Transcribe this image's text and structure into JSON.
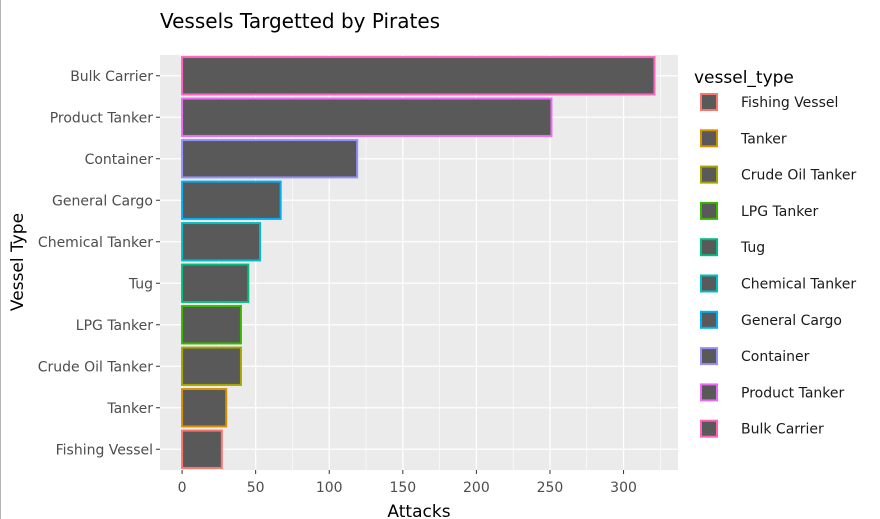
{
  "chart_data": {
    "type": "bar",
    "orientation": "horizontal",
    "title": "Vessels Targetted by Pirates",
    "xlabel": "Attacks",
    "ylabel": "Vessel Type",
    "categories": [
      "Fishing Vessel",
      "Tanker",
      "Crude Oil Tanker",
      "LPG Tanker",
      "Tug",
      "Chemical Tanker",
      "General Cargo",
      "Container",
      "Product Tanker",
      "Bulk Carrier"
    ],
    "values": [
      27,
      30,
      40,
      40,
      45,
      53,
      67,
      119,
      251,
      321
    ],
    "xlim": [
      -15,
      337
    ],
    "x_ticks": [
      0,
      50,
      100,
      150,
      200,
      250,
      300
    ],
    "grid": true,
    "bar_fill": "#595959",
    "outline_colors": [
      "#F8766D",
      "#D89000",
      "#A3A500",
      "#39B600",
      "#00BF7D",
      "#00BFC4",
      "#00B0F6",
      "#9590FF",
      "#E76BF3",
      "#FF62BC"
    ],
    "legend": {
      "title": "vessel_type",
      "position": "right",
      "entries": [
        "Fishing Vessel",
        "Tanker",
        "Crude Oil Tanker",
        "LPG Tanker",
        "Tug",
        "Chemical Tanker",
        "General Cargo",
        "Container",
        "Product Tanker",
        "Bulk Carrier"
      ]
    }
  }
}
